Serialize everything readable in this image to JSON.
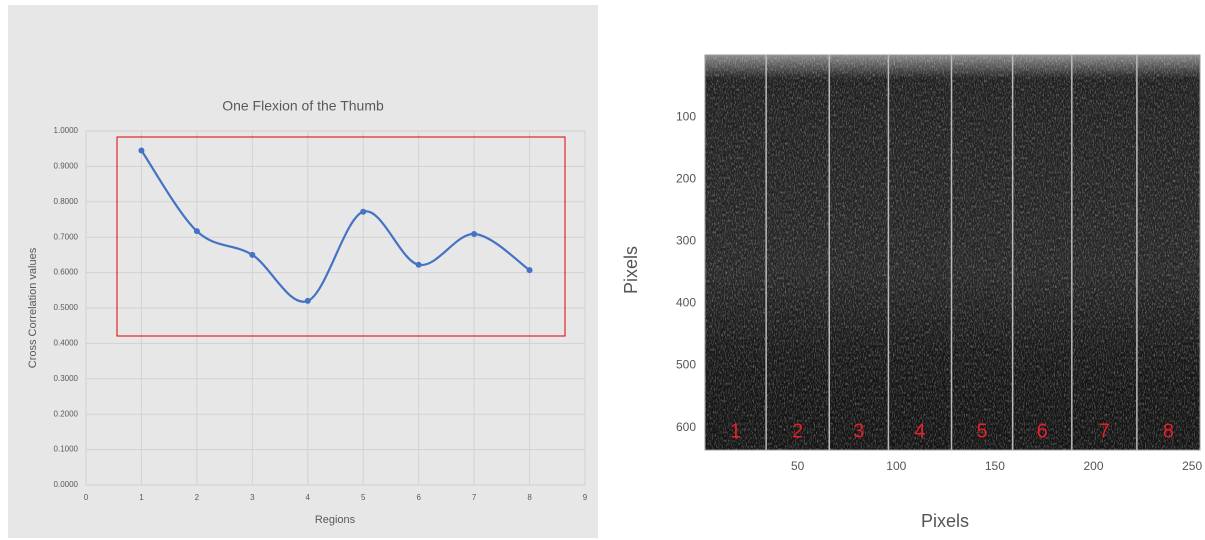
{
  "chart_data": [
    {
      "type": "line",
      "title": "One Flexion of the Thumb",
      "xlabel": "Regions",
      "ylabel": "Cross Correlation values",
      "x": [
        1,
        2,
        3,
        4,
        5,
        6,
        7,
        8
      ],
      "values": [
        0.945,
        0.717,
        0.65,
        0.52,
        0.772,
        0.622,
        0.709,
        0.607
      ],
      "color": "#4472c4",
      "smooth": true,
      "grid": true,
      "xlim": [
        0,
        9
      ],
      "xticks": [
        0,
        1,
        2,
        3,
        4,
        5,
        6,
        7,
        8,
        9
      ],
      "ylim": [
        0,
        1
      ],
      "yticks": [
        {
          "value": 0,
          "label": "0.0000"
        },
        {
          "value": 0.1,
          "label": "0.1000"
        },
        {
          "value": 0.2,
          "label": "0.2000"
        },
        {
          "value": 0.3,
          "label": "0.3000"
        },
        {
          "value": 0.4,
          "label": "0.4000"
        },
        {
          "value": 0.5,
          "label": "0.5000"
        },
        {
          "value": 0.6,
          "label": "0.6000"
        },
        {
          "value": 0.7,
          "label": "0.7000"
        },
        {
          "value": 0.8,
          "label": "0.8000"
        },
        {
          "value": 0.9,
          "label": "0.9000"
        },
        {
          "value": 1,
          "label": "1.0000"
        }
      ]
    },
    {
      "type": "image",
      "xlabel": "Pixels",
      "ylabel": "Pixels",
      "xlim": [
        3,
        254
      ],
      "xticks": [
        50,
        100,
        150,
        200,
        250
      ],
      "ylim": [
        636,
        0
      ],
      "yticks": [
        100,
        200,
        300,
        400,
        500,
        600
      ],
      "region_boundaries": [
        34,
        66,
        96,
        128,
        159,
        189,
        222
      ],
      "region_labels": [
        "1",
        "2",
        "3",
        "4",
        "5",
        "6",
        "7",
        "8"
      ],
      "label_color": "#e8202a"
    }
  ]
}
